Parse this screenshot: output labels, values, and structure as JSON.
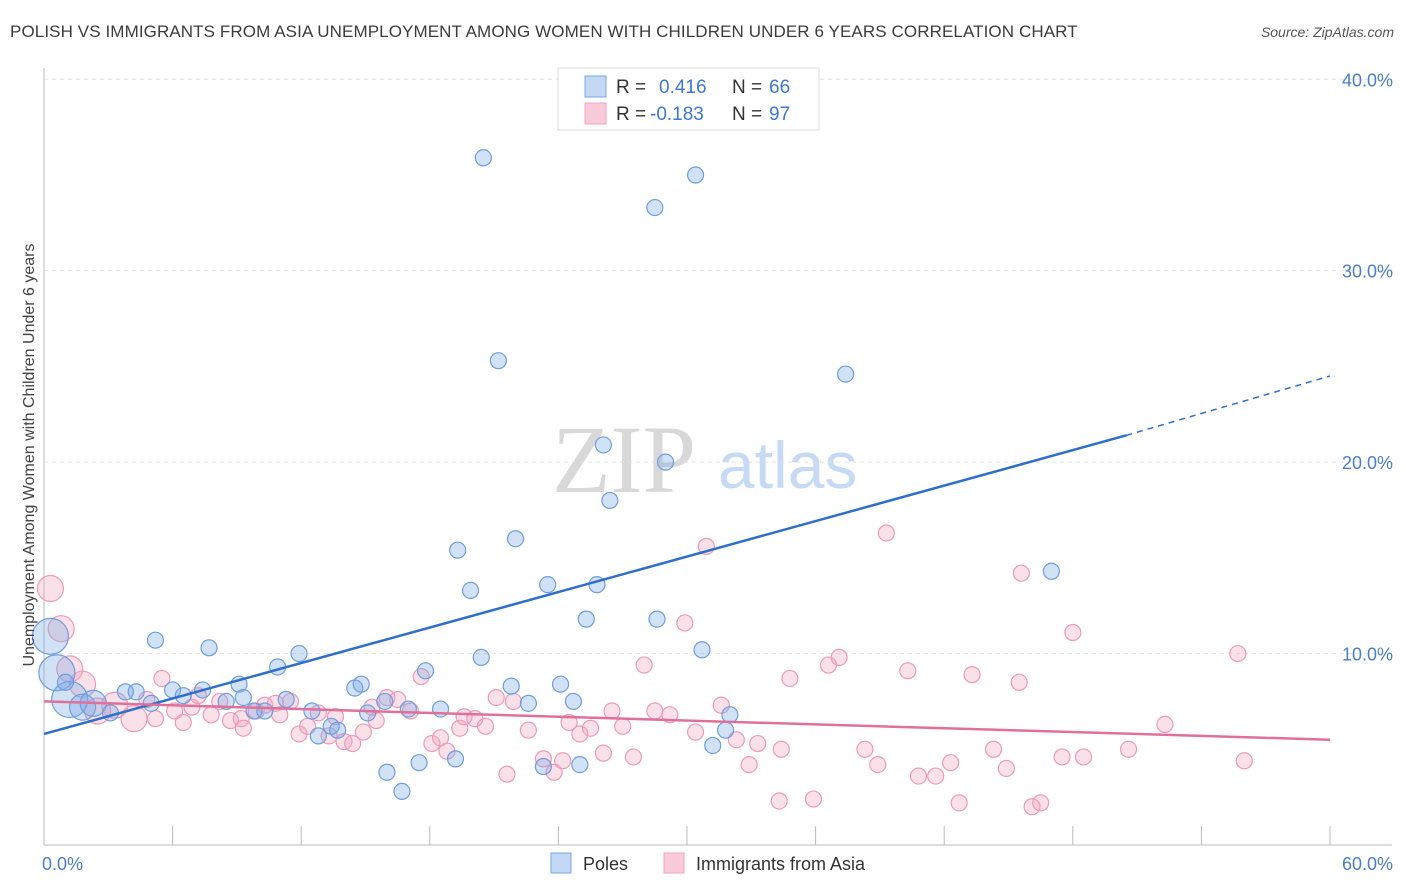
{
  "title": "POLISH VS IMMIGRANTS FROM ASIA UNEMPLOYMENT AMONG WOMEN WITH CHILDREN UNDER 6 YEARS CORRELATION CHART",
  "source": "Source: ZipAtlas.com",
  "watermark": {
    "zip": "ZIP",
    "atlas": "atlas"
  },
  "colors": {
    "poles": "#7aa8e6",
    "poles_line": "#2f6fcc",
    "asia": "#f2a6c0",
    "asia_line": "#e0709a",
    "tick_text": "#4a7fc8"
  },
  "legend": {
    "r_label": "R =",
    "n_label": "N =",
    "poles": {
      "r": "0.416",
      "n": "66"
    },
    "asia": {
      "r": "-0.183",
      "n": "97"
    }
  },
  "bottom_legend": {
    "poles": "Poles",
    "asia": "Immigrants from Asia"
  },
  "chart_data": {
    "type": "scatter",
    "title": "POLISH VS IMMIGRANTS FROM ASIA UNEMPLOYMENT AMONG WOMEN WITH CHILDREN UNDER 6 YEARS CORRELATION CHART",
    "xlabel": "",
    "ylabel": "Unemployment Among Women with Children Under 6 years",
    "xlim": [
      0,
      60
    ],
    "ylim": [
      0,
      42
    ],
    "x_tick_labels": [
      {
        "v": 0,
        "t": "0.0%"
      },
      {
        "v": 60,
        "t": "60.0%"
      }
    ],
    "y_tick_labels": [
      {
        "v": 10,
        "t": "10.0%"
      },
      {
        "v": 20,
        "t": "20.0%"
      },
      {
        "v": 30,
        "t": "30.0%"
      },
      {
        "v": 40,
        "t": "40.0%"
      }
    ],
    "grid": true,
    "legend_position": "top-center",
    "series": [
      {
        "name": "Poles",
        "trend": {
          "x0": 0,
          "y0": 5.8,
          "x1": 50.5,
          "y1": 21.4,
          "dash_to_x": 60,
          "dash_to_y": 24.5
        },
        "points": [
          [
            0.3,
            10.9,
            3
          ],
          [
            0.6,
            9.0,
            3
          ],
          [
            1.2,
            7.6,
            3
          ],
          [
            1.8,
            7.2,
            2
          ],
          [
            2.3,
            7.4,
            2
          ],
          [
            3.1,
            6.9,
            1
          ],
          [
            3.8,
            8.0,
            1
          ],
          [
            4.3,
            8.0,
            1
          ],
          [
            5.0,
            7.4,
            1
          ],
          [
            5.2,
            10.7,
            1
          ],
          [
            6.0,
            8.1,
            1
          ],
          [
            6.5,
            7.8,
            1
          ],
          [
            7.4,
            8.1,
            1
          ],
          [
            7.7,
            10.3,
            1
          ],
          [
            8.5,
            7.5,
            1
          ],
          [
            9.1,
            8.4,
            1
          ],
          [
            9.3,
            7.7,
            1
          ],
          [
            9.8,
            7.0,
            1
          ],
          [
            10.3,
            7.0,
            1
          ],
          [
            10.9,
            9.3,
            1
          ],
          [
            11.3,
            7.6,
            1
          ],
          [
            11.9,
            10.0,
            1
          ],
          [
            12.5,
            7.0,
            1
          ],
          [
            12.8,
            5.7,
            1
          ],
          [
            13.4,
            6.2,
            1
          ],
          [
            13.7,
            6.0,
            1
          ],
          [
            14.5,
            8.2,
            1
          ],
          [
            14.8,
            8.4,
            1
          ],
          [
            15.1,
            6.9,
            1
          ],
          [
            15.9,
            7.5,
            1
          ],
          [
            16.0,
            3.8,
            1
          ],
          [
            16.7,
            2.8,
            1
          ],
          [
            17.0,
            7.1,
            1
          ],
          [
            17.5,
            4.3,
            1
          ],
          [
            17.8,
            9.1,
            1
          ],
          [
            18.5,
            7.1,
            1
          ],
          [
            19.2,
            4.5,
            1
          ],
          [
            19.3,
            15.4,
            1
          ],
          [
            19.9,
            13.3,
            1
          ],
          [
            20.4,
            9.8,
            1
          ],
          [
            20.5,
            35.9,
            1
          ],
          [
            21.2,
            25.3,
            1
          ],
          [
            21.8,
            8.3,
            1
          ],
          [
            22.0,
            16.0,
            1
          ],
          [
            22.6,
            7.4,
            1
          ],
          [
            23.3,
            4.1,
            1
          ],
          [
            23.5,
            13.6,
            1
          ],
          [
            24.1,
            8.4,
            1
          ],
          [
            24.7,
            7.5,
            1
          ],
          [
            25.0,
            4.2,
            1
          ],
          [
            25.3,
            11.8,
            1
          ],
          [
            25.8,
            13.6,
            1
          ],
          [
            26.1,
            20.9,
            1
          ],
          [
            26.4,
            18.0,
            1
          ],
          [
            26.8,
            38.9,
            1
          ],
          [
            28.5,
            33.3,
            1
          ],
          [
            28.6,
            11.8,
            1
          ],
          [
            29.0,
            20.0,
            1
          ],
          [
            30.4,
            35.0,
            1
          ],
          [
            30.7,
            10.2,
            1
          ],
          [
            31.2,
            5.2,
            1
          ],
          [
            31.8,
            6.0,
            1
          ],
          [
            32.0,
            6.8,
            1
          ],
          [
            37.4,
            24.6,
            1
          ],
          [
            47.0,
            14.3,
            1
          ],
          [
            1.0,
            8.5,
            1
          ]
        ]
      },
      {
        "name": "Immigrants from Asia",
        "trend": {
          "x0": 0,
          "y0": 7.5,
          "x1": 60,
          "y1": 5.5
        },
        "points": [
          [
            0.3,
            13.4,
            2
          ],
          [
            0.8,
            11.3,
            2
          ],
          [
            1.2,
            9.2,
            2
          ],
          [
            1.8,
            8.4,
            2
          ],
          [
            2.5,
            7.0,
            2
          ],
          [
            3.3,
            7.3,
            2
          ],
          [
            4.2,
            6.6,
            2
          ],
          [
            4.8,
            7.6,
            1
          ],
          [
            5.2,
            6.6,
            1
          ],
          [
            5.5,
            8.7,
            1
          ],
          [
            6.1,
            7.0,
            1
          ],
          [
            6.5,
            6.4,
            1
          ],
          [
            6.9,
            7.2,
            1
          ],
          [
            7.2,
            7.8,
            1
          ],
          [
            7.8,
            6.8,
            1
          ],
          [
            8.2,
            7.5,
            1
          ],
          [
            8.7,
            6.5,
            1
          ],
          [
            9.2,
            6.6,
            1
          ],
          [
            9.3,
            6.1,
            1
          ],
          [
            9.9,
            7.0,
            1
          ],
          [
            10.3,
            7.3,
            1
          ],
          [
            10.8,
            7.4,
            1
          ],
          [
            11.0,
            6.8,
            1
          ],
          [
            11.5,
            7.5,
            1
          ],
          [
            11.9,
            5.8,
            1
          ],
          [
            12.3,
            6.2,
            1
          ],
          [
            12.8,
            6.9,
            1
          ],
          [
            13.3,
            5.7,
            1
          ],
          [
            13.6,
            6.7,
            1
          ],
          [
            14.0,
            5.4,
            1
          ],
          [
            14.4,
            5.3,
            1
          ],
          [
            14.9,
            5.9,
            1
          ],
          [
            15.3,
            7.2,
            1
          ],
          [
            15.5,
            6.5,
            1
          ],
          [
            16.0,
            7.7,
            1
          ],
          [
            16.5,
            7.6,
            1
          ],
          [
            17.1,
            7.0,
            1
          ],
          [
            17.6,
            8.8,
            1
          ],
          [
            18.1,
            5.3,
            1
          ],
          [
            18.5,
            5.6,
            1
          ],
          [
            18.8,
            4.9,
            1
          ],
          [
            19.4,
            6.1,
            1
          ],
          [
            19.6,
            6.7,
            1
          ],
          [
            20.1,
            6.6,
            1
          ],
          [
            20.6,
            6.2,
            1
          ],
          [
            21.1,
            7.7,
            1
          ],
          [
            21.6,
            3.7,
            1
          ],
          [
            21.9,
            7.5,
            1
          ],
          [
            22.6,
            6.0,
            1
          ],
          [
            23.3,
            4.5,
            1
          ],
          [
            23.8,
            3.8,
            1
          ],
          [
            24.2,
            4.4,
            1
          ],
          [
            24.5,
            6.4,
            1
          ],
          [
            25.0,
            5.8,
            1
          ],
          [
            25.5,
            6.1,
            1
          ],
          [
            26.1,
            4.8,
            1
          ],
          [
            26.5,
            7.0,
            1
          ],
          [
            27.0,
            6.2,
            1
          ],
          [
            27.5,
            4.6,
            1
          ],
          [
            28.0,
            9.4,
            1
          ],
          [
            28.5,
            7.0,
            1
          ],
          [
            29.2,
            6.8,
            1
          ],
          [
            29.9,
            11.6,
            1
          ],
          [
            30.4,
            5.9,
            1
          ],
          [
            30.9,
            15.6,
            1
          ],
          [
            31.6,
            7.3,
            1
          ],
          [
            32.3,
            5.5,
            1
          ],
          [
            32.9,
            4.2,
            1
          ],
          [
            33.3,
            5.3,
            1
          ],
          [
            34.3,
            2.3,
            1
          ],
          [
            34.4,
            5.0,
            1
          ],
          [
            34.8,
            8.7,
            1
          ],
          [
            35.9,
            2.4,
            1
          ],
          [
            36.6,
            9.4,
            1
          ],
          [
            37.1,
            9.8,
            1
          ],
          [
            38.3,
            5.0,
            1
          ],
          [
            38.9,
            4.2,
            1
          ],
          [
            39.3,
            16.3,
            1
          ],
          [
            40.3,
            9.1,
            1
          ],
          [
            40.8,
            3.6,
            1
          ],
          [
            41.6,
            3.6,
            1
          ],
          [
            42.3,
            4.3,
            1
          ],
          [
            42.7,
            2.2,
            1
          ],
          [
            43.3,
            8.9,
            1
          ],
          [
            44.3,
            5.0,
            1
          ],
          [
            44.9,
            4.0,
            1
          ],
          [
            45.6,
            14.2,
            1
          ],
          [
            46.1,
            2.0,
            1
          ],
          [
            46.5,
            2.2,
            1
          ],
          [
            47.5,
            4.6,
            1
          ],
          [
            48.0,
            11.1,
            1
          ],
          [
            48.5,
            4.6,
            1
          ],
          [
            50.6,
            5.0,
            1
          ],
          [
            52.3,
            6.3,
            1
          ],
          [
            55.7,
            10.0,
            1
          ],
          [
            56.0,
            4.4,
            1
          ],
          [
            45.5,
            8.5,
            1
          ]
        ]
      }
    ]
  }
}
